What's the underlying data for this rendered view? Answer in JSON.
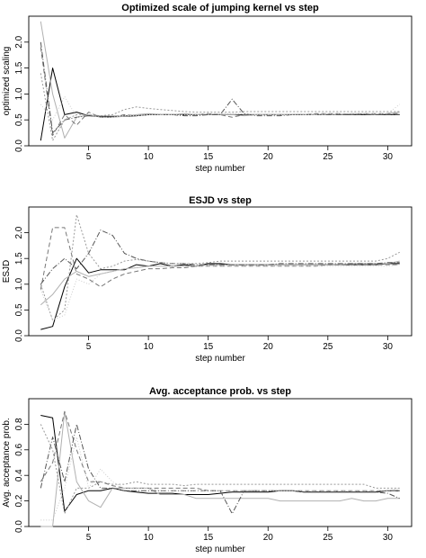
{
  "chart_data": [
    {
      "type": "line",
      "title": "Optimized scale of jumping kernel vs step",
      "xlabel": "step number",
      "ylabel": "optimized scaling",
      "xlim": [
        0,
        32
      ],
      "ylim": [
        0,
        2.5
      ],
      "xticks": [
        "5",
        "10",
        "15",
        "20",
        "25",
        "30"
      ],
      "yticks": [
        "0.0",
        "0.5",
        "1.0",
        "1.5",
        "2.0"
      ],
      "grid": false,
      "legend": "none",
      "series": [
        {
          "values": [
            0.1,
            1.5,
            0.6,
            0.65,
            0.58,
            0.57,
            0.57,
            0.57,
            0.58,
            0.6,
            0.6,
            0.6,
            0.6,
            0.6,
            0.6,
            0.6,
            0.6,
            0.6,
            0.6,
            0.6,
            0.6,
            0.6,
            0.6,
            0.6,
            0.6,
            0.6,
            0.6,
            0.6,
            0.6,
            0.6,
            0.6
          ],
          "color": "#000000",
          "dash": ""
        },
        {
          "values": [
            2.4,
            1.0,
            0.15,
            0.55,
            0.6,
            0.55,
            0.55,
            0.57,
            0.6,
            0.62,
            0.6,
            0.6,
            0.62,
            0.6,
            0.6,
            0.6,
            0.6,
            0.58,
            0.6,
            0.6,
            0.6,
            0.6,
            0.6,
            0.6,
            0.6,
            0.6,
            0.62,
            0.62,
            0.6,
            0.62,
            0.65
          ],
          "color": "#b0b0b0",
          "dash": ""
        },
        {
          "values": [
            1.9,
            0.2,
            0.6,
            0.4,
            0.65,
            0.55,
            0.55,
            0.6,
            0.58,
            0.6,
            0.6,
            0.6,
            0.6,
            0.6,
            0.62,
            0.6,
            0.55,
            0.6,
            0.6,
            0.6,
            0.6,
            0.6,
            0.6,
            0.62,
            0.62,
            0.62,
            0.6,
            0.62,
            0.62,
            0.62,
            0.62
          ],
          "color": "#777777",
          "dash": "5,3"
        },
        {
          "values": [
            2.0,
            0.25,
            0.5,
            0.55,
            0.58,
            0.56,
            0.56,
            0.58,
            0.58,
            0.6,
            0.6,
            0.6,
            0.58,
            0.58,
            0.6,
            0.6,
            0.9,
            0.62,
            0.58,
            0.58,
            0.58,
            0.6,
            0.6,
            0.6,
            0.6,
            0.6,
            0.6,
            0.6,
            0.6,
            0.6,
            0.6
          ],
          "color": "#555555",
          "dash": "6,2,1,2"
        },
        {
          "values": [
            1.4,
            0.1,
            0.5,
            0.6,
            0.6,
            0.58,
            0.6,
            0.7,
            0.75,
            0.72,
            0.7,
            0.68,
            0.66,
            0.65,
            0.65,
            0.65,
            0.65,
            0.66,
            0.66,
            0.66,
            0.66,
            0.66,
            0.66,
            0.66,
            0.66,
            0.66,
            0.66,
            0.66,
            0.66,
            0.66,
            0.66
          ],
          "color": "#999999",
          "dash": "2,2"
        },
        {
          "values": [
            0.8,
            0.5,
            0.95,
            0.55,
            0.6,
            0.55,
            0.55,
            0.58,
            0.58,
            0.6,
            0.6,
            0.6,
            0.6,
            0.6,
            0.62,
            0.62,
            0.62,
            0.62,
            0.6,
            0.6,
            0.6,
            0.6,
            0.6,
            0.6,
            0.62,
            0.62,
            0.62,
            0.62,
            0.62,
            0.62,
            0.8
          ],
          "color": "#cccccc",
          "dash": "1,2"
        }
      ]
    },
    {
      "type": "line",
      "title": "ESJD vs step",
      "xlabel": "step number",
      "ylabel": "ESJD",
      "xlim": [
        0,
        32
      ],
      "ylim": [
        0,
        2.5
      ],
      "xticks": [
        "5",
        "10",
        "15",
        "20",
        "25",
        "30"
      ],
      "yticks": [
        "0.0",
        "0.5",
        "1.0",
        "1.5",
        "2.0"
      ],
      "grid": false,
      "legend": "none",
      "series": [
        {
          "values": [
            0.12,
            0.18,
            0.95,
            1.5,
            1.22,
            1.28,
            1.28,
            1.28,
            1.38,
            1.35,
            1.4,
            1.35,
            1.38,
            1.35,
            1.4,
            1.4,
            1.38,
            1.38,
            1.38,
            1.38,
            1.38,
            1.38,
            1.38,
            1.38,
            1.38,
            1.38,
            1.38,
            1.38,
            1.38,
            1.4,
            1.4
          ],
          "color": "#000000",
          "dash": ""
        },
        {
          "values": [
            0.6,
            0.8,
            1.1,
            1.25,
            1.15,
            1.2,
            1.25,
            1.3,
            1.32,
            1.35,
            1.35,
            1.35,
            1.35,
            1.35,
            1.38,
            1.38,
            1.38,
            1.38,
            1.38,
            1.38,
            1.38,
            1.38,
            1.38,
            1.38,
            1.38,
            1.38,
            1.4,
            1.4,
            1.4,
            1.4,
            1.45
          ],
          "color": "#b0b0b0",
          "dash": ""
        },
        {
          "values": [
            0.9,
            2.1,
            2.1,
            1.2,
            1.1,
            0.95,
            1.1,
            1.2,
            1.25,
            1.3,
            1.3,
            1.32,
            1.32,
            1.35,
            1.35,
            1.35,
            1.35,
            1.35,
            1.35,
            1.35,
            1.35,
            1.35,
            1.35,
            1.35,
            1.38,
            1.38,
            1.38,
            1.38,
            1.38,
            1.38,
            1.38
          ],
          "color": "#777777",
          "dash": "5,3"
        },
        {
          "values": [
            1.0,
            1.3,
            1.5,
            1.3,
            1.6,
            2.05,
            1.95,
            1.6,
            1.5,
            1.45,
            1.42,
            1.4,
            1.4,
            1.38,
            1.38,
            1.38,
            1.38,
            1.38,
            1.38,
            1.38,
            1.4,
            1.4,
            1.4,
            1.4,
            1.4,
            1.4,
            1.4,
            1.4,
            1.4,
            1.42,
            1.42
          ],
          "color": "#555555",
          "dash": "6,2,1,2"
        },
        {
          "values": [
            1.0,
            0.3,
            0.5,
            2.35,
            1.6,
            1.3,
            1.35,
            1.45,
            1.48,
            1.45,
            1.42,
            1.4,
            1.4,
            1.4,
            1.42,
            1.45,
            1.45,
            1.45,
            1.45,
            1.45,
            1.45,
            1.45,
            1.45,
            1.45,
            1.45,
            1.45,
            1.45,
            1.45,
            1.45,
            1.5,
            1.62
          ],
          "color": "#999999",
          "dash": "2,2"
        },
        {
          "values": [
            0.9,
            0.3,
            0.4,
            1.1,
            1.0,
            1.2,
            1.25,
            1.3,
            1.32,
            1.35,
            1.35,
            1.35,
            1.35,
            1.35,
            1.35,
            1.35,
            1.35,
            1.35,
            1.35,
            1.35,
            1.35,
            1.35,
            1.35,
            1.35,
            1.35,
            1.35,
            1.35,
            1.35,
            1.35,
            1.35,
            1.38
          ],
          "color": "#cccccc",
          "dash": "1,2"
        }
      ]
    },
    {
      "type": "line",
      "title": "Avg. acceptance prob. vs step",
      "xlabel": "step number",
      "ylabel": "Avg. acceptance prob.",
      "xlim": [
        0,
        32
      ],
      "ylim": [
        0,
        1.0
      ],
      "xticks": [
        "5",
        "10",
        "15",
        "20",
        "25",
        "30"
      ],
      "yticks": [
        "0.0",
        "0.2",
        "0.4",
        "0.6",
        "0.8"
      ],
      "grid": false,
      "legend": "none",
      "series": [
        {
          "values": [
            0.87,
            0.85,
            0.12,
            0.25,
            0.28,
            0.28,
            0.3,
            0.28,
            0.27,
            0.26,
            0.26,
            0.26,
            0.25,
            0.25,
            0.25,
            0.26,
            0.27,
            0.27,
            0.27,
            0.27,
            0.28,
            0.28,
            0.27,
            0.27,
            0.27,
            0.27,
            0.27,
            0.27,
            0.27,
            0.28,
            0.28
          ],
          "color": "#000000",
          "dash": ""
        },
        {
          "values": [
            0.0,
            0.0,
            0.9,
            0.35,
            0.2,
            0.15,
            0.3,
            0.3,
            0.3,
            0.3,
            0.25,
            0.25,
            0.25,
            0.22,
            0.22,
            0.22,
            0.22,
            0.22,
            0.22,
            0.22,
            0.2,
            0.2,
            0.2,
            0.2,
            0.2,
            0.2,
            0.22,
            0.2,
            0.2,
            0.22,
            0.22
          ],
          "color": "#b0b0b0",
          "dash": ""
        },
        {
          "values": [
            0.35,
            0.5,
            0.9,
            0.6,
            0.35,
            0.35,
            0.32,
            0.3,
            0.3,
            0.3,
            0.3,
            0.3,
            0.3,
            0.3,
            0.28,
            0.28,
            0.28,
            0.28,
            0.28,
            0.28,
            0.28,
            0.28,
            0.28,
            0.28,
            0.28,
            0.28,
            0.28,
            0.28,
            0.28,
            0.28,
            0.28
          ],
          "color": "#777777",
          "dash": "5,3"
        },
        {
          "values": [
            0.3,
            0.7,
            0.35,
            0.8,
            0.45,
            0.3,
            0.3,
            0.28,
            0.28,
            0.28,
            0.28,
            0.28,
            0.28,
            0.28,
            0.28,
            0.28,
            0.1,
            0.28,
            0.28,
            0.28,
            0.28,
            0.28,
            0.27,
            0.27,
            0.27,
            0.27,
            0.27,
            0.27,
            0.27,
            0.26,
            0.22
          ],
          "color": "#555555",
          "dash": "6,2,1,2"
        },
        {
          "values": [
            0.8,
            0.6,
            0.1,
            0.3,
            0.3,
            0.35,
            0.33,
            0.33,
            0.35,
            0.33,
            0.33,
            0.33,
            0.32,
            0.33,
            0.33,
            0.33,
            0.33,
            0.33,
            0.33,
            0.33,
            0.33,
            0.33,
            0.33,
            0.33,
            0.33,
            0.33,
            0.33,
            0.33,
            0.3,
            0.3,
            0.3
          ],
          "color": "#999999",
          "dash": "2,2"
        },
        {
          "values": [
            0.05,
            0.05,
            0.3,
            0.7,
            0.3,
            0.45,
            0.35,
            0.3,
            0.3,
            0.3,
            0.28,
            0.28,
            0.28,
            0.28,
            0.28,
            0.28,
            0.28,
            0.28,
            0.28,
            0.28,
            0.28,
            0.28,
            0.28,
            0.28,
            0.28,
            0.28,
            0.28,
            0.28,
            0.28,
            0.28,
            0.3
          ],
          "color": "#cccccc",
          "dash": "1,2"
        }
      ]
    }
  ]
}
